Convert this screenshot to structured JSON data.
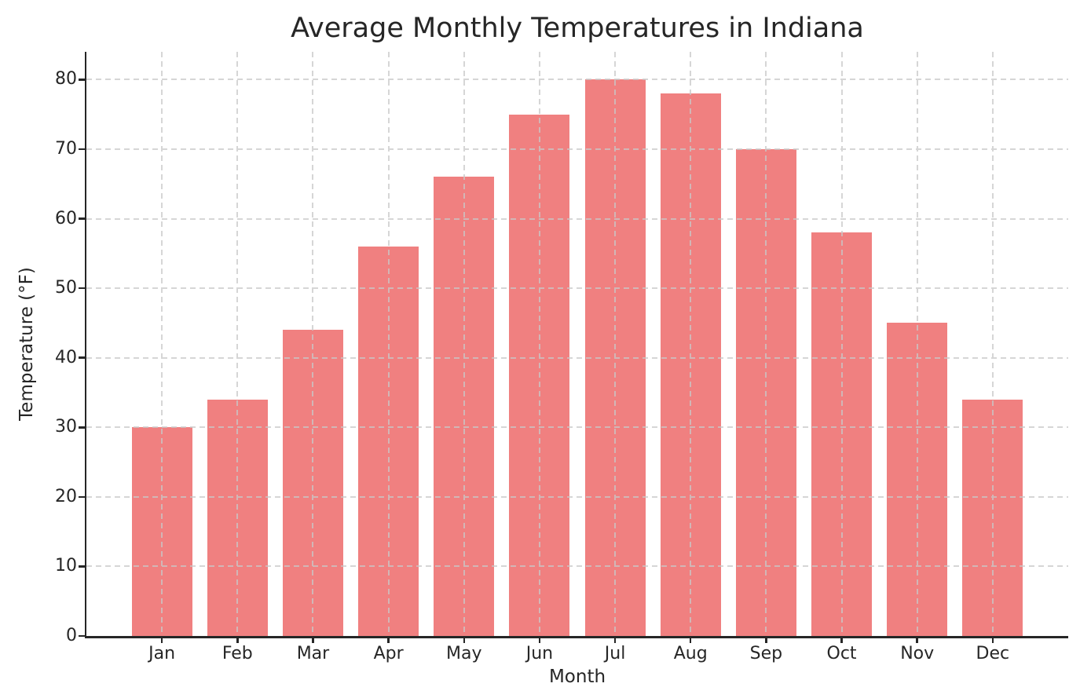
{
  "chart_data": {
    "type": "bar",
    "title": "Average Monthly Temperatures in Indiana",
    "xlabel": "Month",
    "ylabel": "Temperature (°F)",
    "categories": [
      "Jan",
      "Feb",
      "Mar",
      "Apr",
      "May",
      "Jun",
      "Jul",
      "Aug",
      "Sep",
      "Oct",
      "Nov",
      "Dec"
    ],
    "values": [
      30,
      34,
      44,
      56,
      66,
      75,
      80,
      78,
      70,
      58,
      45,
      34
    ],
    "yticks": [
      0,
      10,
      20,
      30,
      40,
      50,
      60,
      70,
      80
    ],
    "ylim": [
      0,
      84
    ],
    "bar_color": "#F08080",
    "grid_color": "#c9c9c9",
    "axis_color": "#262626",
    "grid": "both-dashed",
    "legend_position": "none"
  }
}
